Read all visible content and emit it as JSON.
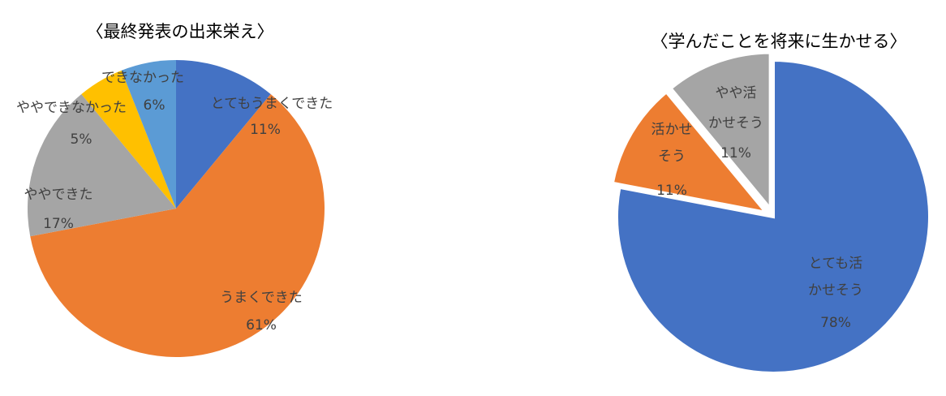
{
  "chart_data": [
    {
      "type": "pie",
      "title": "〈最終発表の出来栄え〉",
      "categories": [
        [
          "とてもうまくできた"
        ],
        [
          "うまくできた"
        ],
        [
          "ややできた"
        ],
        [
          "ややできなかった"
        ],
        [
          "できなかった"
        ]
      ],
      "values": [
        11,
        61,
        17,
        5,
        6
      ],
      "value_labels": [
        "11%",
        "61%",
        "17%",
        "5%",
        "6%"
      ],
      "colors": [
        "#4472c4",
        "#ed7d31",
        "#a5a5a5",
        "#ffc000",
        "#5b9bd5"
      ]
    },
    {
      "type": "pie",
      "title": "〈学んだことを将来に生かせる〉",
      "categories": [
        [
          "とても活",
          "かせそう"
        ],
        [
          "活かせ",
          "そう"
        ],
        [
          "やや活",
          "かせそう"
        ]
      ],
      "values": [
        78,
        11,
        11
      ],
      "value_labels": [
        "78%",
        "11%",
        "11%"
      ],
      "colors": [
        "#4472c4",
        "#ed7d31",
        "#a5a5a5"
      ]
    }
  ]
}
